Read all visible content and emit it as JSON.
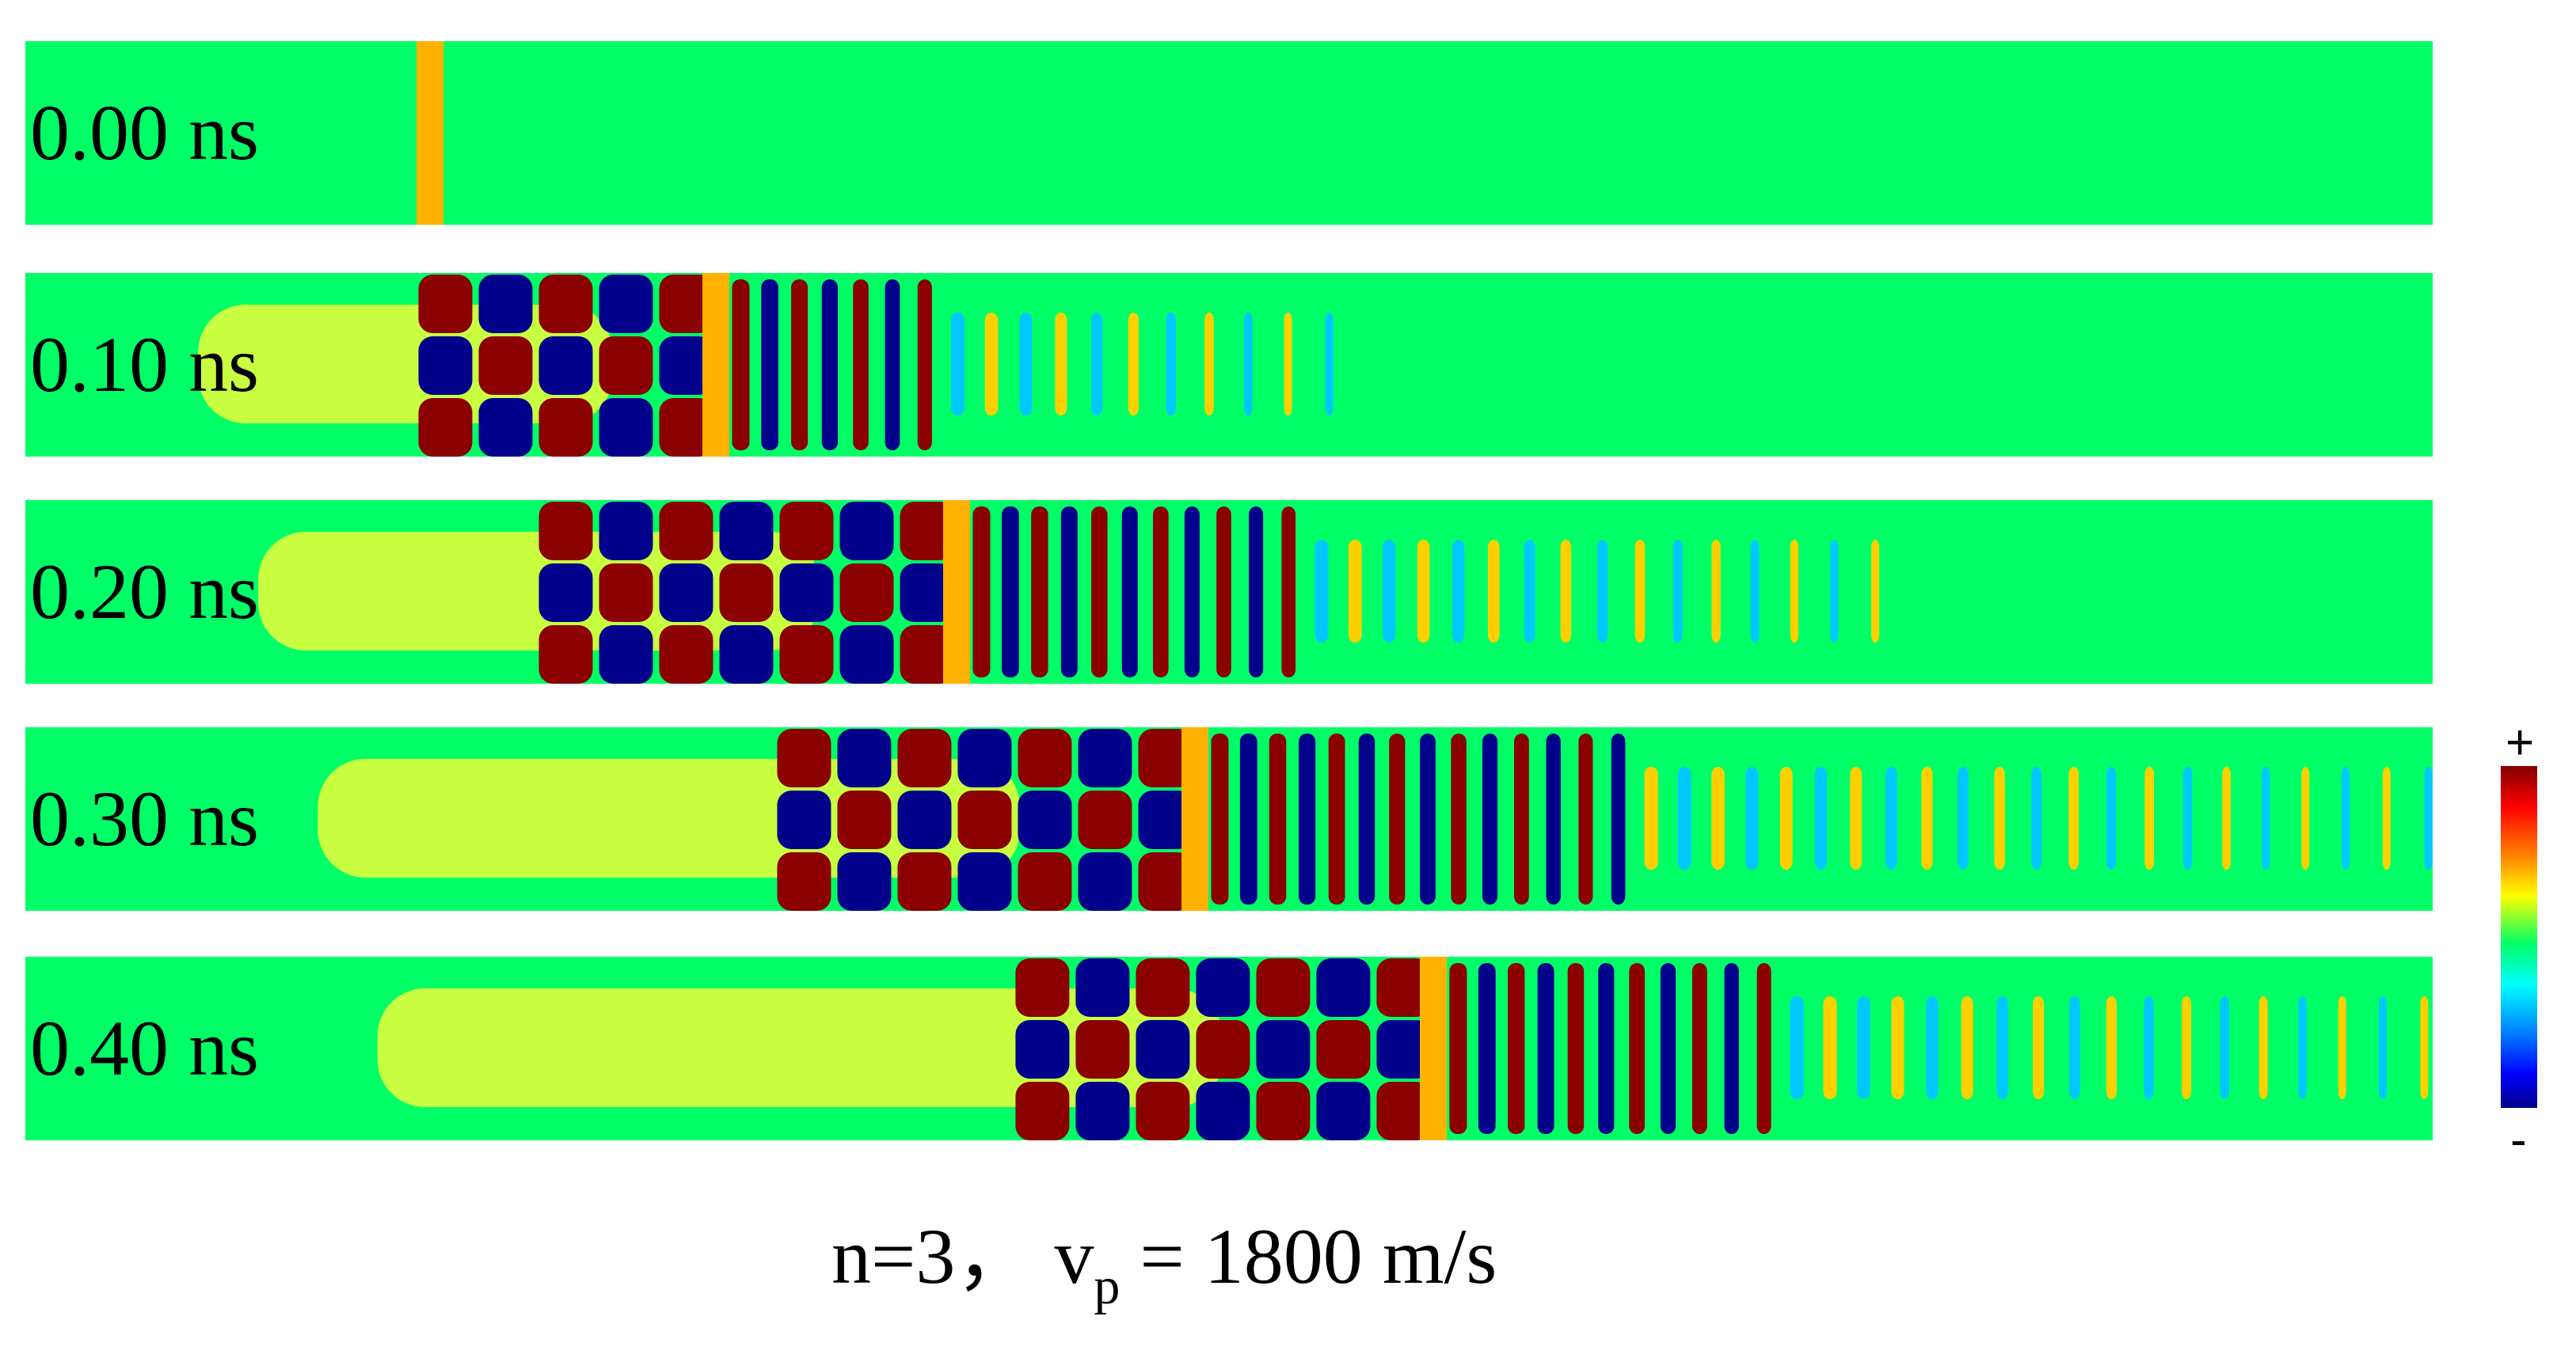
{
  "panels": [
    {
      "time": "0.00 ns",
      "front_fraction": 0.168,
      "extent_fraction": 0.0
    },
    {
      "time": "0.10 ns",
      "front_fraction": 0.287,
      "extent_fraction": 0.54
    },
    {
      "time": "0.20 ns",
      "front_fraction": 0.387,
      "extent_fraction": 0.78
    },
    {
      "time": "0.30 ns",
      "front_fraction": 0.486,
      "extent_fraction": 1.0
    },
    {
      "time": "0.40 ns",
      "front_fraction": 0.585,
      "extent_fraction": 1.0
    }
  ],
  "colorbar": {
    "max_label": "+",
    "min_label": "-"
  },
  "caption": {
    "prefix": "n=3， v",
    "sub": "p",
    "suffix": " = 1800 m/s"
  },
  "colors": {
    "background_field": "#00ff66",
    "marker": "#ffb300",
    "positive": "#8b0000",
    "negative": "#00008b"
  }
}
